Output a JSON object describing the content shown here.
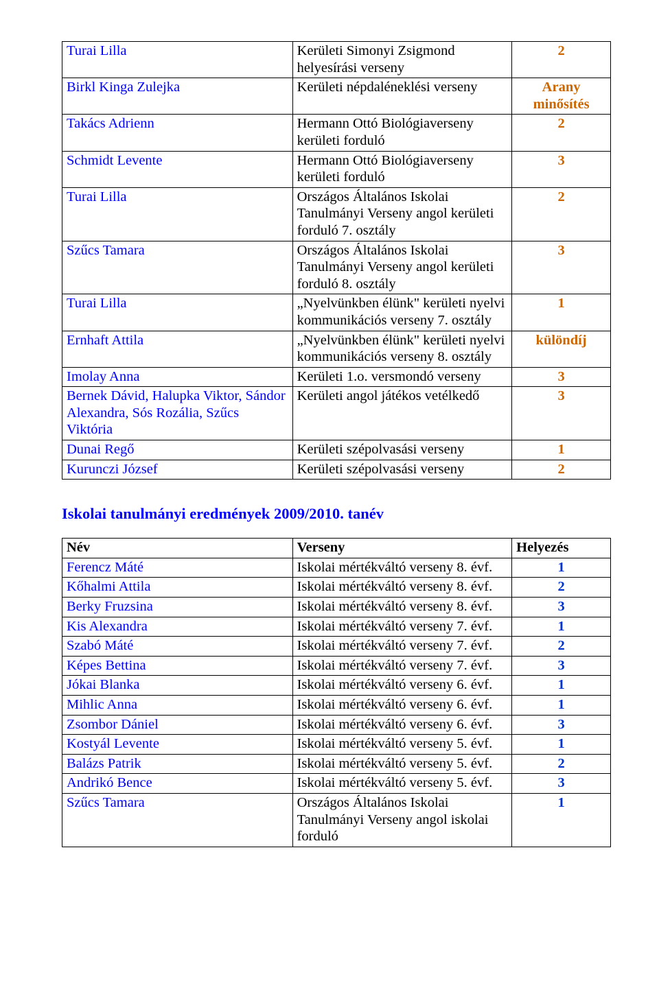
{
  "table1": {
    "rows": [
      {
        "name": "Turai Lilla",
        "comp": "Kerületi Simonyi Zsigmond helyesírási verseny",
        "place": "2",
        "place_color": "#cc6600"
      },
      {
        "name": "Birkl Kinga Zulejka",
        "comp": "Kerületi népdaléneklési verseny",
        "place": "Arany minősítés",
        "place_color": "#cc6600"
      },
      {
        "name": "Takács Adrienn",
        "comp": "Hermann Ottó Biológiaverseny kerületi forduló",
        "place": "2",
        "place_color": "#cc6600"
      },
      {
        "name": "Schmidt Levente",
        "comp": "Hermann Ottó Biológiaverseny kerületi forduló",
        "place": "3",
        "place_color": "#cc6600"
      },
      {
        "name": "Turai Lilla",
        "comp": "Országos Általános Iskolai Tanulmányi Verseny angol kerületi forduló 7. osztály",
        "place": "2",
        "place_color": "#cc6600"
      },
      {
        "name": "Szűcs Tamara",
        "comp": "Országos Általános Iskolai Tanulmányi Verseny angol kerületi forduló 8. osztály",
        "place": "3",
        "place_color": "#cc6600"
      },
      {
        "name": "Turai Lilla",
        "comp": "„Nyelvünkben élünk\" kerületi nyelvi kommunikációs verseny 7. osztály",
        "place": "1",
        "place_color": "#cc6600"
      },
      {
        "name": "Ernhaft Attila",
        "comp": "„Nyelvünkben élünk\" kerületi nyelvi kommunikációs verseny 8. osztály",
        "place": "különdíj",
        "place_color": "#cc6600"
      },
      {
        "name": "Imolay Anna",
        "comp": "Kerületi 1.o. versmondó verseny",
        "place": "3",
        "place_color": "#cc6600"
      },
      {
        "name": "Bernek Dávid, Halupka Viktor, Sándor Alexandra, Sós Rozália, Szűcs Viktória",
        "comp": "Kerületi angol játékos vetélkedő",
        "place": "3",
        "place_color": "#cc6600"
      },
      {
        "name": "Dunai Regő",
        "comp": "Kerületi szépolvasási verseny",
        "place": "1",
        "place_color": "#cc6600"
      },
      {
        "name": "Kurunczi József",
        "comp": "Kerületi szépolvasási verseny",
        "place": "2",
        "place_color": "#cc6600"
      }
    ]
  },
  "section_heading": "Iskolai tanulmányi eredmények 2009/2010. tanév",
  "table2": {
    "headers": {
      "name": "Név",
      "comp": "Verseny",
      "place": "Helyezés"
    },
    "rows": [
      {
        "name": "Ferencz Máté",
        "comp": "Iskolai mértékváltó verseny 8. évf.",
        "place": "1",
        "place_color": "#0033cc"
      },
      {
        "name": "Kőhalmi Attila",
        "comp": "Iskolai mértékváltó verseny 8. évf.",
        "place": "2",
        "place_color": "#0033cc"
      },
      {
        "name": "Berky Fruzsina",
        "comp": "Iskolai mértékváltó verseny 8. évf.",
        "place": "3",
        "place_color": "#0033cc"
      },
      {
        "name": "Kis Alexandra",
        "comp": "Iskolai mértékváltó verseny 7. évf.",
        "place": "1",
        "place_color": "#0033cc"
      },
      {
        "name": "Szabó Máté",
        "comp": "Iskolai mértékváltó verseny 7. évf.",
        "place": "2",
        "place_color": "#0033cc"
      },
      {
        "name": "Képes Bettina",
        "comp": "Iskolai mértékváltó verseny 7. évf.",
        "place": "3",
        "place_color": "#0033cc"
      },
      {
        "name": "Jókai Blanka",
        "comp": "Iskolai mértékváltó verseny 6. évf.",
        "place": "1",
        "place_color": "#0033cc"
      },
      {
        "name": "Mihlic Anna",
        "comp": "Iskolai mértékváltó verseny 6. évf.",
        "place": "1",
        "place_color": "#0033cc"
      },
      {
        "name": "Zsombor Dániel",
        "comp": "Iskolai mértékváltó verseny 6. évf.",
        "place": "3",
        "place_color": "#0033cc"
      },
      {
        "name": "Kostyál Levente",
        "comp": "Iskolai mértékváltó verseny 5. évf.",
        "place": "1",
        "place_color": "#0033cc"
      },
      {
        "name": "Balázs Patrik",
        "comp": "Iskolai mértékváltó verseny 5. évf.",
        "place": "2",
        "place_color": "#0033cc"
      },
      {
        "name": "Andrikó Bence",
        "comp": "Iskolai mértékváltó verseny 5. évf.",
        "place": "3",
        "place_color": "#0033cc"
      },
      {
        "name": "Szűcs Tamara",
        "comp": "Országos Általános Iskolai Tanulmányi Verseny angol iskolai forduló",
        "place": "1",
        "place_color": "#0033cc"
      }
    ]
  }
}
